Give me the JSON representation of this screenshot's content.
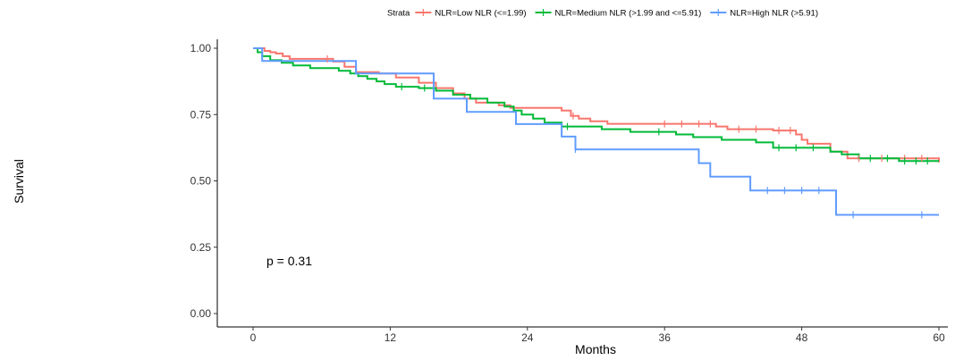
{
  "chart_data": {
    "type": "line",
    "subtype": "kaplan-meier step",
    "xlabel": "Months",
    "ylabel": "Survival",
    "xlim": [
      -3,
      62
    ],
    "ylim": [
      0,
      1.05
    ],
    "xticks": [
      0,
      12,
      24,
      36,
      48,
      60
    ],
    "yticks": [
      "0.00",
      "0.25",
      "0.50",
      "0.75",
      "1.00"
    ],
    "annotation": "p = 0.31",
    "legend": {
      "title": "Strata",
      "placement": "top",
      "entries": [
        "NLR=Low NLR (<=1.99)",
        "NLR=Medium NLR (>1.99 and <=5.91)",
        "NLR=High NLR (>5.91)"
      ]
    },
    "series": [
      {
        "name": "NLR=Low NLR (<=1.99)",
        "color": "#F8766D",
        "x": [
          0,
          1.0,
          1.5,
          2.0,
          2.6,
          3.2,
          7.0,
          8.0,
          9.0,
          11.0,
          12.5,
          14.5,
          16.0,
          17.5,
          18.5,
          19.5,
          21.5,
          22.5,
          27.0,
          27.8,
          28.5,
          29.5,
          31.0,
          40.5,
          41.5,
          45.5,
          47.5,
          48.0,
          48.5,
          50.5,
          52.0,
          60
        ],
        "y": [
          1.0,
          0.99,
          0.985,
          0.98,
          0.97,
          0.96,
          0.95,
          0.93,
          0.91,
          0.905,
          0.89,
          0.87,
          0.85,
          0.83,
          0.81,
          0.795,
          0.785,
          0.775,
          0.765,
          0.745,
          0.735,
          0.725,
          0.715,
          0.705,
          0.695,
          0.69,
          0.675,
          0.655,
          0.64,
          0.61,
          0.585,
          0.57
        ],
        "censored_x": [
          6.5,
          28.0,
          36.0,
          37.5,
          39.0,
          40.0,
          42.5,
          44.0,
          46.0,
          47.0,
          53.0,
          55.0,
          57.0,
          58.5
        ]
      },
      {
        "name": "NLR=Medium NLR (>1.99 and <=5.91)",
        "color": "#00BA38",
        "x": [
          0,
          0.4,
          0.8,
          1.5,
          2.5,
          3.5,
          5.0,
          7.5,
          8.5,
          9.2,
          10.0,
          10.8,
          11.5,
          12.5,
          14.5,
          16.0,
          17.5,
          19.0,
          20.5,
          22.0,
          22.8,
          23.5,
          24.5,
          25.5,
          27.0,
          30.5,
          33.0,
          37.0,
          38.5,
          41.0,
          44.0,
          45.5,
          50.5,
          51.5,
          53.0,
          56.5,
          60
        ],
        "y": [
          1.0,
          0.985,
          0.97,
          0.955,
          0.945,
          0.935,
          0.925,
          0.915,
          0.905,
          0.895,
          0.885,
          0.875,
          0.865,
          0.855,
          0.85,
          0.84,
          0.825,
          0.81,
          0.795,
          0.78,
          0.765,
          0.75,
          0.735,
          0.72,
          0.705,
          0.695,
          0.685,
          0.675,
          0.665,
          0.655,
          0.645,
          0.625,
          0.61,
          0.6,
          0.585,
          0.575,
          0.575
        ],
        "censored_x": [
          13.0,
          15.0,
          27.5,
          35.5,
          46.0,
          47.5,
          49.0,
          54.0,
          55.5,
          57.0,
          58.0,
          59.0
        ]
      },
      {
        "name": "NLR=High NLR (>5.91)",
        "color": "#619CFF",
        "x": [
          0,
          0.8,
          9.0,
          15.8,
          18.7,
          23.0,
          27.0,
          28.2,
          39.0,
          40.0,
          43.5,
          51.0,
          60
        ],
        "y": [
          1.0,
          0.952,
          0.905,
          0.81,
          0.76,
          0.714,
          0.667,
          0.619,
          0.567,
          0.516,
          0.464,
          0.372,
          0.372
        ],
        "censored_x": [
          28.2,
          45.0,
          46.5,
          48.0,
          49.5,
          52.5,
          58.5
        ]
      }
    ]
  }
}
